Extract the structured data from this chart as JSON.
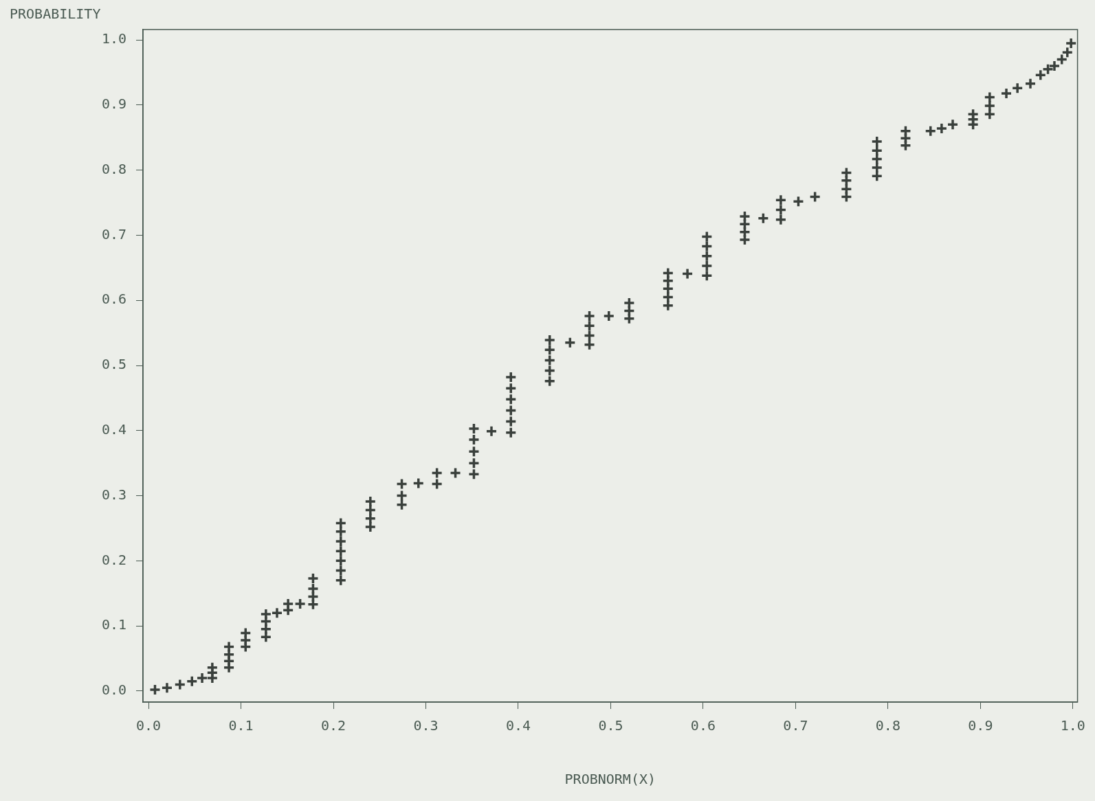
{
  "chart_data": {
    "type": "scatter",
    "xlabel": "PROBNORM(X)",
    "ylabel": "PROBABILITY",
    "marker": "cross",
    "grid": false,
    "legend": false,
    "xlim": [
      -0.006,
      1.005
    ],
    "ylim": [
      -0.017,
      1.016
    ],
    "xticks": [
      {
        "value": 0,
        "label": "0.0"
      },
      {
        "value": 0.1,
        "label": "0.1"
      },
      {
        "value": 0.2,
        "label": "0.2"
      },
      {
        "value": 0.3,
        "label": "0.3"
      },
      {
        "value": 0.4,
        "label": "0.4"
      },
      {
        "value": 0.5,
        "label": "0.5"
      },
      {
        "value": 0.6,
        "label": "0.6"
      },
      {
        "value": 0.7,
        "label": "0.7"
      },
      {
        "value": 0.8,
        "label": "0.8"
      },
      {
        "value": 0.9,
        "label": "0.9"
      },
      {
        "value": 1,
        "label": "1.0"
      }
    ],
    "yticks": [
      {
        "value": 0,
        "label": "0.0"
      },
      {
        "value": 0.1,
        "label": "0.1"
      },
      {
        "value": 0.2,
        "label": "0.2"
      },
      {
        "value": 0.3,
        "label": "0.3"
      },
      {
        "value": 0.4,
        "label": "0.4"
      },
      {
        "value": 0.5,
        "label": "0.5"
      },
      {
        "value": 0.6,
        "label": "0.6"
      },
      {
        "value": 0.7,
        "label": "0.7"
      },
      {
        "value": 0.8,
        "label": "0.8"
      },
      {
        "value": 0.9,
        "label": "0.9"
      },
      {
        "value": 1,
        "label": "1.0"
      }
    ],
    "series": [
      {
        "color": "#3a403c",
        "x": [
          0.007,
          0.02,
          0.034,
          0.047,
          0.058,
          0.069,
          0.069,
          0.069,
          0.087,
          0.087,
          0.087,
          0.087,
          0.105,
          0.105,
          0.105,
          0.127,
          0.127,
          0.127,
          0.127,
          0.139,
          0.151,
          0.151,
          0.164,
          0.178,
          0.178,
          0.178,
          0.178,
          0.208,
          0.208,
          0.208,
          0.208,
          0.208,
          0.208,
          0.208,
          0.24,
          0.24,
          0.24,
          0.24,
          0.274,
          0.274,
          0.274,
          0.292,
          0.312,
          0.312,
          0.332,
          0.352,
          0.352,
          0.352,
          0.352,
          0.352,
          0.371,
          0.392,
          0.392,
          0.392,
          0.392,
          0.392,
          0.392,
          0.434,
          0.434,
          0.434,
          0.434,
          0.434,
          0.456,
          0.477,
          0.477,
          0.477,
          0.477,
          0.498,
          0.52,
          0.52,
          0.52,
          0.562,
          0.562,
          0.562,
          0.562,
          0.562,
          0.583,
          0.604,
          0.604,
          0.604,
          0.604,
          0.604,
          0.645,
          0.645,
          0.645,
          0.645,
          0.665,
          0.684,
          0.684,
          0.684,
          0.703,
          0.721,
          0.755,
          0.755,
          0.755,
          0.755,
          0.788,
          0.788,
          0.788,
          0.788,
          0.788,
          0.819,
          0.819,
          0.819,
          0.846,
          0.858,
          0.87,
          0.892,
          0.892,
          0.892,
          0.91,
          0.91,
          0.91,
          0.928,
          0.94,
          0.954,
          0.965,
          0.973,
          0.98,
          0.988,
          0.994,
          0.998
        ],
        "values": [
          0.002,
          0.005,
          0.01,
          0.015,
          0.02,
          0.02,
          0.028,
          0.036,
          0.036,
          0.046,
          0.056,
          0.068,
          0.068,
          0.078,
          0.089,
          0.083,
          0.095,
          0.107,
          0.118,
          0.12,
          0.124,
          0.134,
          0.134,
          0.133,
          0.145,
          0.157,
          0.173,
          0.17,
          0.185,
          0.2,
          0.215,
          0.23,
          0.245,
          0.258,
          0.252,
          0.265,
          0.278,
          0.291,
          0.286,
          0.3,
          0.318,
          0.319,
          0.318,
          0.335,
          0.335,
          0.333,
          0.35,
          0.368,
          0.386,
          0.403,
          0.399,
          0.397,
          0.414,
          0.431,
          0.448,
          0.465,
          0.482,
          0.476,
          0.492,
          0.508,
          0.524,
          0.539,
          0.535,
          0.532,
          0.546,
          0.561,
          0.576,
          0.576,
          0.572,
          0.584,
          0.596,
          0.592,
          0.605,
          0.618,
          0.63,
          0.642,
          0.641,
          0.638,
          0.653,
          0.668,
          0.683,
          0.698,
          0.693,
          0.705,
          0.717,
          0.729,
          0.726,
          0.724,
          0.739,
          0.754,
          0.752,
          0.759,
          0.759,
          0.771,
          0.784,
          0.796,
          0.791,
          0.804,
          0.817,
          0.83,
          0.844,
          0.838,
          0.849,
          0.86,
          0.86,
          0.864,
          0.87,
          0.87,
          0.878,
          0.886,
          0.886,
          0.899,
          0.912,
          0.918,
          0.926,
          0.933,
          0.946,
          0.955,
          0.96,
          0.97,
          0.981,
          0.995
        ]
      }
    ]
  }
}
